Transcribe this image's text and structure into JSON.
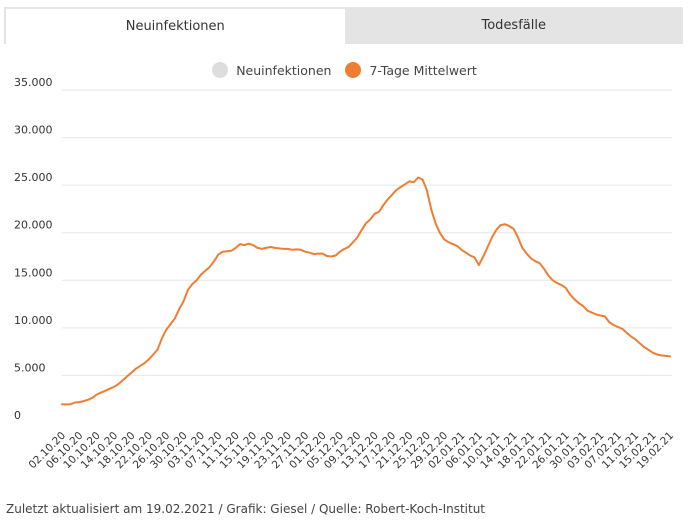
{
  "tabs": [
    {
      "label": "Neuinfektionen",
      "active": true
    },
    {
      "label": "Todesfälle",
      "active": false
    }
  ],
  "legend": [
    {
      "label": "Neuinfektionen",
      "color": "#dddddd"
    },
    {
      "label": "7-Tage Mittelwert",
      "color": "#ef7d32"
    }
  ],
  "footer": "Zuletzt aktualisiert am 19.02.2021 / Grafik: Giesel / Quelle: Robert-Koch-Institut",
  "chart_data": {
    "type": "line",
    "title": "",
    "xlabel": "",
    "ylabel": "",
    "ylim": [
      0,
      35000
    ],
    "yticks": [
      0,
      5000,
      10000,
      15000,
      20000,
      25000,
      30000,
      35000
    ],
    "ytick_labels": [
      "0",
      "5.000",
      "10.000",
      "15.000",
      "20.000",
      "25.000",
      "30.000",
      "35.000"
    ],
    "grid": true,
    "legend_position": "top-center",
    "x_tick_labels": [
      "02.10.20",
      "06.10.20",
      "10.10.20",
      "14.10.20",
      "18.10.20",
      "22.10.20",
      "26.10.20",
      "30.10.20",
      "03.11.20",
      "07.11.20",
      "11.11.20",
      "15.11.20",
      "19.11.20",
      "23.11.20",
      "27.11.20",
      "01.12.20",
      "05.12.20",
      "09.12.20",
      "13.12.20",
      "17.12.20",
      "21.12.20",
      "25.12.20",
      "29.12.20",
      "02.01.21",
      "06.01.21",
      "10.01.21",
      "14.01.21",
      "18.01.21",
      "22.01.21",
      "26.01.21",
      "30.01.21",
      "03.02.21",
      "07.02.21",
      "11.02.21",
      "15.02.21",
      "19.02.21"
    ],
    "series": [
      {
        "name": "7-Tage Mittelwert",
        "color": "#ef7d32",
        "x": [
          "02.10.20",
          "03.10.20",
          "04.10.20",
          "05.10.20",
          "06.10.20",
          "07.10.20",
          "08.10.20",
          "09.10.20",
          "10.10.20",
          "11.10.20",
          "12.10.20",
          "13.10.20",
          "14.10.20",
          "15.10.20",
          "16.10.20",
          "17.10.20",
          "18.10.20",
          "19.10.20",
          "20.10.20",
          "21.10.20",
          "22.10.20",
          "23.10.20",
          "24.10.20",
          "25.10.20",
          "26.10.20",
          "27.10.20",
          "28.10.20",
          "29.10.20",
          "30.10.20",
          "31.10.20",
          "01.11.20",
          "02.11.20",
          "03.11.20",
          "04.11.20",
          "05.11.20",
          "06.11.20",
          "07.11.20",
          "08.11.20",
          "09.11.20",
          "10.11.20",
          "11.11.20",
          "12.11.20",
          "13.11.20",
          "14.11.20",
          "15.11.20",
          "16.11.20",
          "17.11.20",
          "18.11.20",
          "19.11.20",
          "20.11.20",
          "21.11.20",
          "22.11.20",
          "23.11.20",
          "24.11.20",
          "25.11.20",
          "26.11.20",
          "27.11.20",
          "28.11.20",
          "29.11.20",
          "30.11.20",
          "01.12.20",
          "02.12.20",
          "03.12.20",
          "04.12.20",
          "05.12.20",
          "06.12.20",
          "07.12.20",
          "08.12.20",
          "09.12.20",
          "10.12.20",
          "11.12.20",
          "12.12.20",
          "13.12.20",
          "14.12.20",
          "15.12.20",
          "16.12.20",
          "17.12.20",
          "18.12.20",
          "19.12.20",
          "20.12.20",
          "21.12.20",
          "22.12.20",
          "23.12.20",
          "24.12.20",
          "25.12.20",
          "26.12.20",
          "27.12.20",
          "28.12.20",
          "29.12.20",
          "30.12.20",
          "31.12.20",
          "01.01.21",
          "02.01.21",
          "03.01.21",
          "04.01.21",
          "05.01.21",
          "06.01.21",
          "07.01.21",
          "08.01.21",
          "09.01.21",
          "10.01.21",
          "11.01.21",
          "12.01.21",
          "13.01.21",
          "14.01.21",
          "15.01.21",
          "16.01.21",
          "17.01.21",
          "18.01.21",
          "19.01.21",
          "20.01.21",
          "21.01.21",
          "22.01.21",
          "23.01.21",
          "24.01.21",
          "25.01.21",
          "26.01.21",
          "27.01.21",
          "28.01.21",
          "29.01.21",
          "30.01.21",
          "31.01.21",
          "01.02.21",
          "02.02.21",
          "03.02.21",
          "04.02.21",
          "05.02.21",
          "06.02.21",
          "07.02.21",
          "08.02.21",
          "09.02.21",
          "10.02.21",
          "11.02.21",
          "12.02.21",
          "13.02.21",
          "14.02.21",
          "15.02.21",
          "16.02.21",
          "17.02.21",
          "18.02.21",
          "19.02.21"
        ],
        "values": [
          1950,
          1950,
          1980,
          2150,
          2200,
          2300,
          2450,
          2650,
          3000,
          3200,
          3400,
          3600,
          3800,
          4100,
          4500,
          4900,
          5300,
          5700,
          6000,
          6300,
          6700,
          7200,
          7700,
          8900,
          9800,
          10400,
          11000,
          12000,
          12800,
          14000,
          14600,
          15000,
          15600,
          16000,
          16400,
          17000,
          17700,
          18000,
          18050,
          18100,
          18400,
          18800,
          18700,
          18850,
          18700,
          18400,
          18300,
          18400,
          18500,
          18400,
          18350,
          18300,
          18300,
          18200,
          18250,
          18200,
          18000,
          17900,
          17750,
          17800,
          17800,
          17550,
          17500,
          17600,
          18000,
          18300,
          18500,
          19000,
          19500,
          20300,
          21000,
          21400,
          22000,
          22200,
          22900,
          23500,
          24000,
          24500,
          24800,
          25100,
          25400,
          25300,
          25800,
          25600,
          24500,
          22500,
          21000,
          20000,
          19300,
          19000,
          18800,
          18600,
          18200,
          17900,
          17600,
          17400,
          16600,
          17500,
          18500,
          19500,
          20300,
          20800,
          20900,
          20700,
          20400,
          19500,
          18400,
          17800,
          17300,
          17000,
          16800,
          16200,
          15500,
          15000,
          14700,
          14500,
          14200,
          13500,
          13000,
          12600,
          12300,
          11800,
          11600,
          11400,
          11300,
          11200,
          10600,
          10300,
          10100,
          9900,
          9500,
          9100,
          8800,
          8400,
          8000,
          7700,
          7400,
          7200,
          7100,
          7050,
          7000
        ]
      }
    ]
  }
}
